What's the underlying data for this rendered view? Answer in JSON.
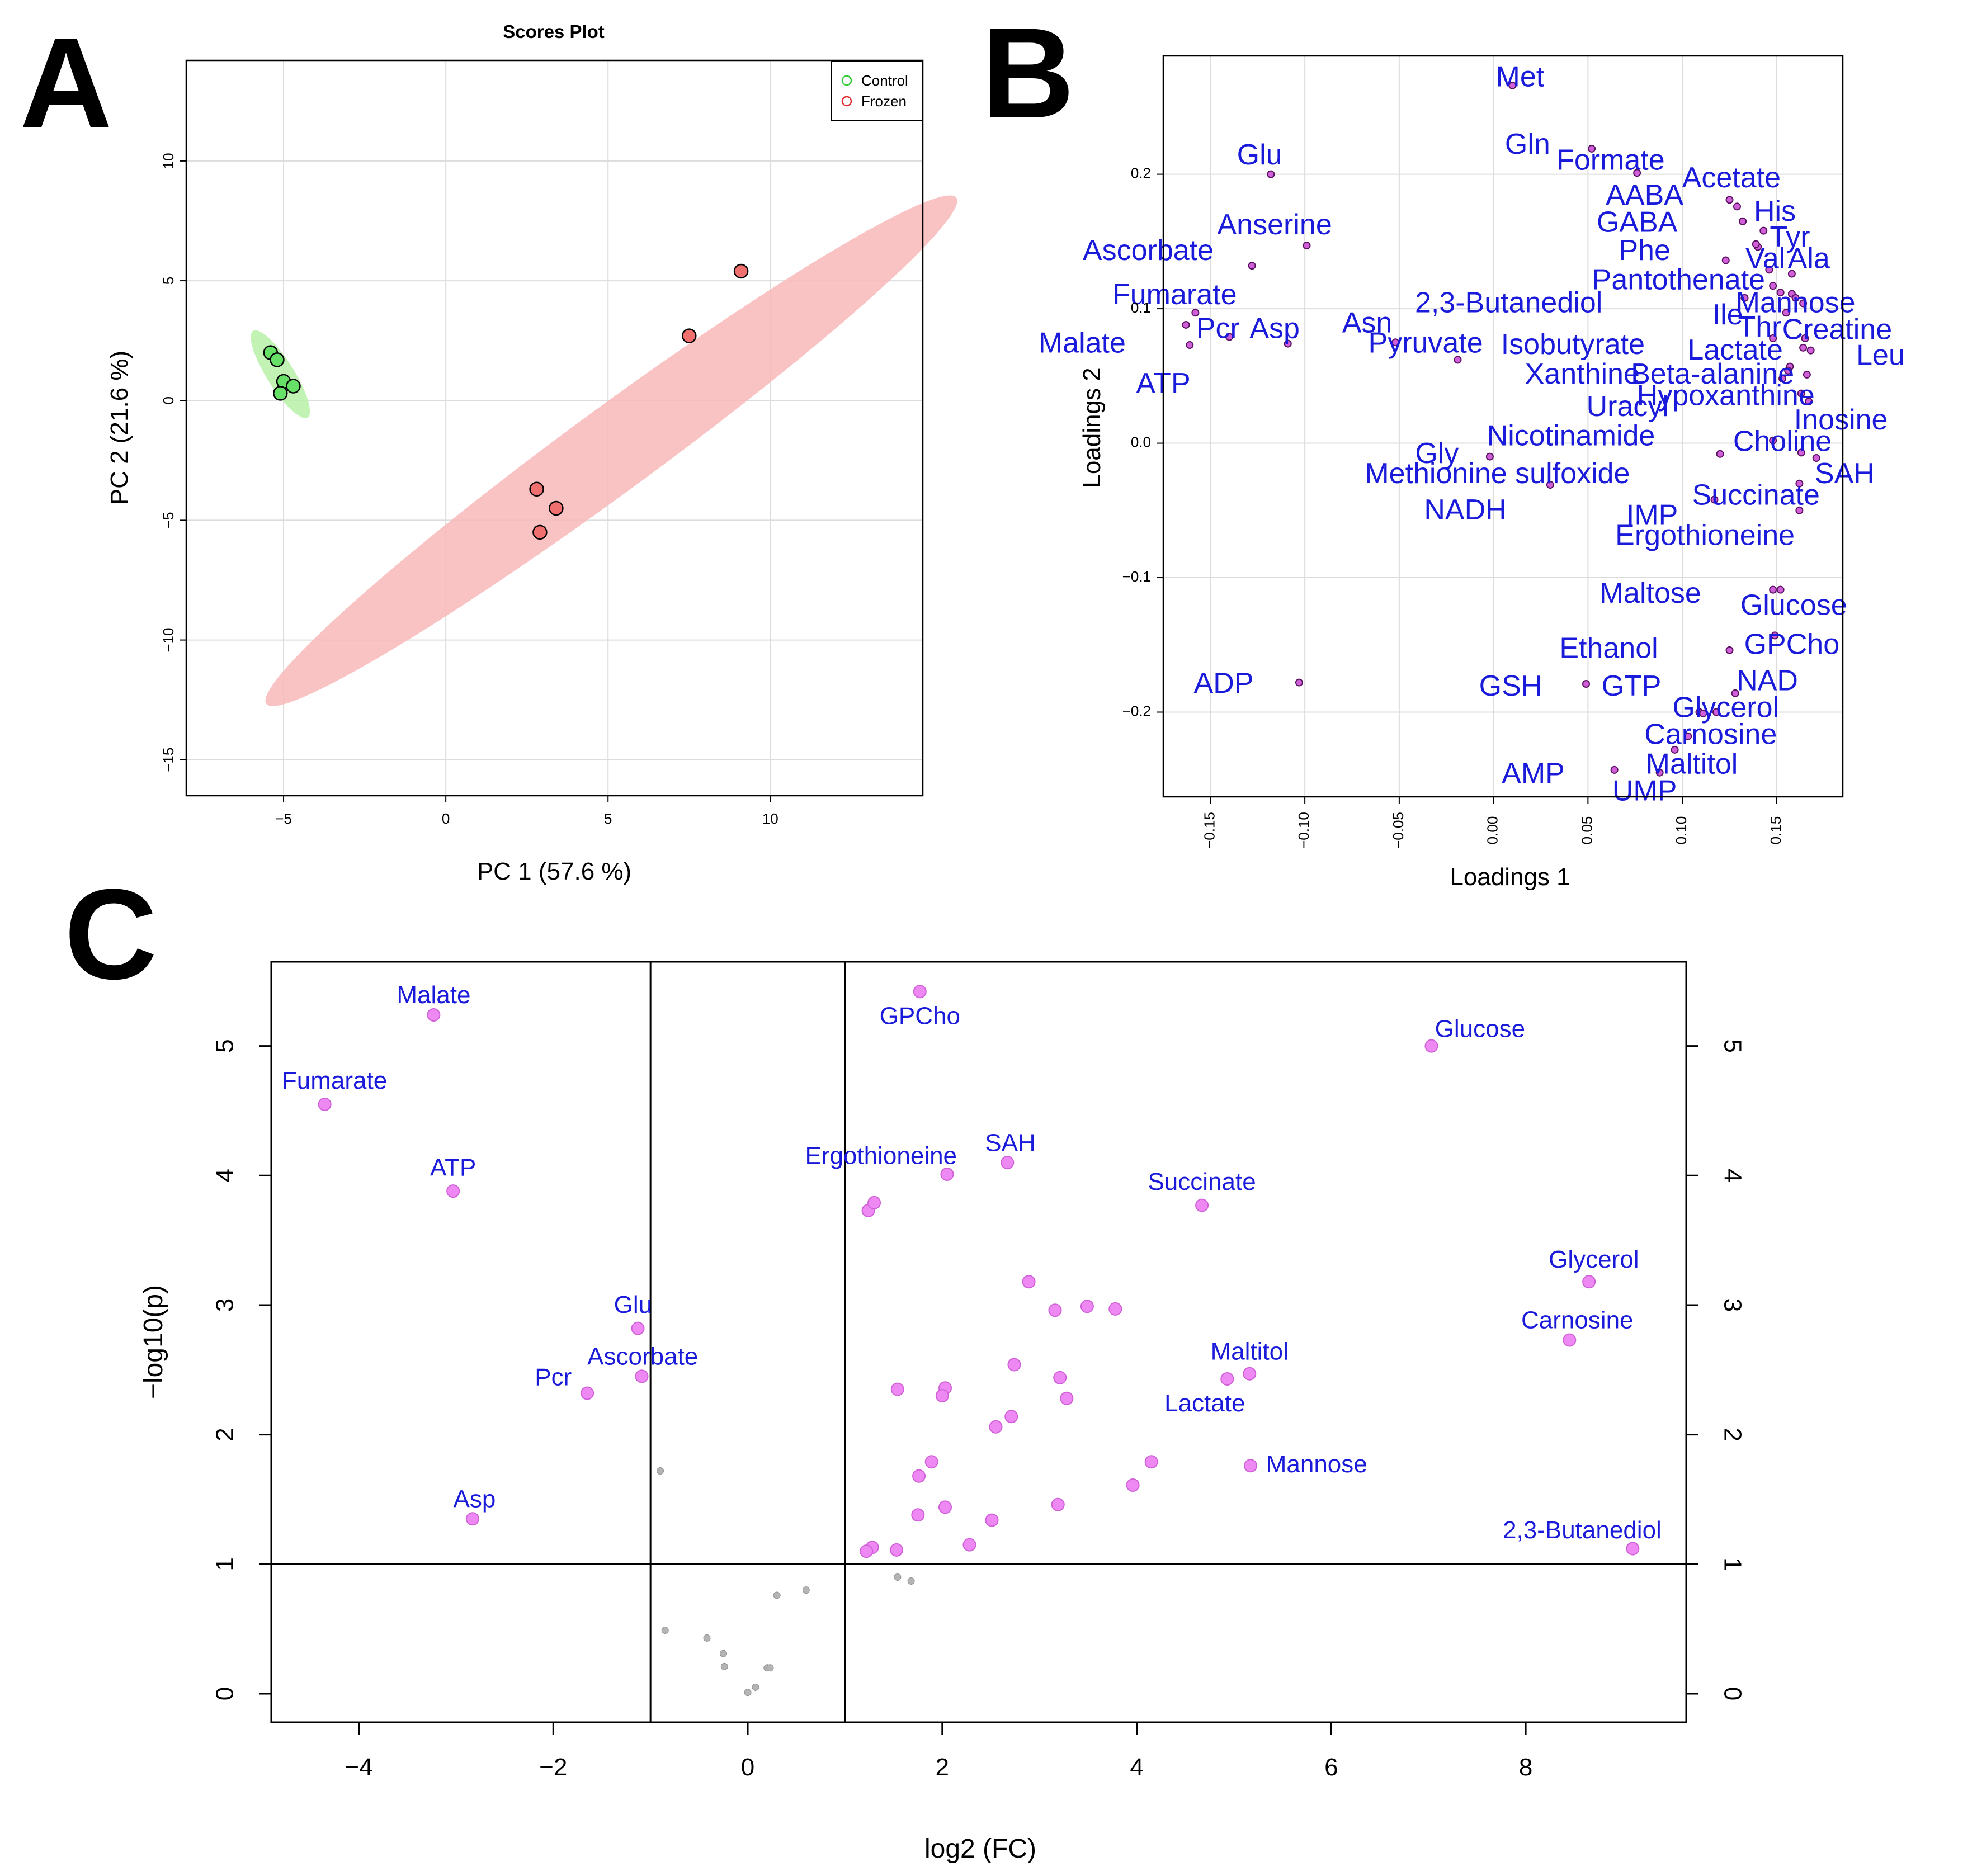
{
  "panels": {
    "a": "A",
    "b": "B",
    "c": "C"
  },
  "colors": {
    "control": "#33cc33",
    "frozen": "#e03030",
    "label": "#1a1adb",
    "magenta": "#e070e8",
    "grey": "#b0b0b0"
  },
  "chart_data": [
    {
      "type": "scatter",
      "title": "Scores Plot",
      "xlabel": "PC 1 (57.6 %)",
      "ylabel": "PC 2 (21.6 %)",
      "xlim": [
        -8,
        14.7
      ],
      "ylim": [
        -16.5,
        14.2
      ],
      "xticks": [
        -5,
        0,
        5,
        10
      ],
      "yticks": [
        -15,
        -10,
        -5,
        0,
        5,
        10
      ],
      "legend": {
        "position": "top-right",
        "entries": [
          "Control",
          "Frozen"
        ]
      },
      "series": [
        {
          "name": "Control",
          "points": [
            [
              -5.4,
              2.0
            ],
            [
              -5.2,
              1.7
            ],
            [
              -5.0,
              0.8
            ],
            [
              -4.7,
              0.6
            ],
            [
              -5.1,
              0.3
            ]
          ]
        },
        {
          "name": "Frozen",
          "points": [
            [
              9.1,
              5.4
            ],
            [
              7.5,
              2.7
            ],
            [
              2.8,
              -3.7
            ],
            [
              3.4,
              -4.5
            ],
            [
              2.9,
              -5.5
            ]
          ]
        }
      ],
      "ellipses": [
        {
          "name": "Control",
          "center": [
            -5.1,
            1.1
          ],
          "semi_major": 2.0,
          "semi_minor": 0.45,
          "angle_deg": -66
        },
        {
          "name": "Frozen",
          "center": [
            5.1,
            -2.1
          ],
          "semi_major": 15.0,
          "semi_minor": 1.55,
          "angle_deg": 45
        }
      ]
    },
    {
      "type": "scatter",
      "xlabel": "Loadings 1",
      "ylabel": "Loadings 2",
      "xlim": [
        -0.175,
        0.185
      ],
      "ylim": [
        -0.263,
        0.288
      ],
      "xticks": [
        -0.15,
        -0.1,
        -0.05,
        0.0,
        0.05,
        0.1,
        0.15
      ],
      "xtick_labels": [
        "-0.15",
        "-0.10",
        "-0.05",
        "0.00",
        "0.05",
        "0.10",
        "0.15"
      ],
      "yticks": [
        -0.2,
        -0.1,
        0.0,
        0.1,
        0.2
      ],
      "ytick_labels": [
        "-0.2",
        "-0.1",
        "0.0",
        "0.1",
        "0.2"
      ],
      "points": [
        {
          "name": "Met",
          "x": 0.01,
          "y": 0.266,
          "lx": 0.014,
          "ly": 0.271
        },
        {
          "name": "Glu",
          "x": -0.118,
          "y": 0.2,
          "lx": -0.124,
          "ly": 0.213
        },
        {
          "name": "Gln",
          "x": 0.052,
          "y": 0.219,
          "lx": 0.018,
          "ly": 0.221
        },
        {
          "name": "Formate",
          "x": 0.076,
          "y": 0.201,
          "lx": 0.062,
          "ly": 0.209
        },
        {
          "name": "Acetate",
          "x": 0.125,
          "y": 0.181,
          "lx": 0.126,
          "ly": 0.196
        },
        {
          "name": "AABA",
          "x": 0.129,
          "y": 0.176,
          "lx": 0.08,
          "ly": 0.183
        },
        {
          "name": "His",
          "x": 0.143,
          "y": 0.158,
          "lx": 0.149,
          "ly": 0.171
        },
        {
          "name": "GABA",
          "x": 0.132,
          "y": 0.165,
          "lx": 0.076,
          "ly": 0.163
        },
        {
          "name": "Tyr",
          "x": 0.14,
          "y": 0.146,
          "lx": 0.157,
          "ly": 0.152
        },
        {
          "name": "Anserine",
          "x": -0.099,
          "y": 0.147,
          "lx": -0.116,
          "ly": 0.161
        },
        {
          "name": "Ascorbate",
          "x": -0.128,
          "y": 0.132,
          "lx": -0.183,
          "ly": 0.142
        },
        {
          "name": "Phe",
          "x": 0.123,
          "y": 0.136,
          "lx": 0.08,
          "ly": 0.142
        },
        {
          "name": "Val",
          "x": 0.146,
          "y": 0.129,
          "lx": 0.144,
          "ly": 0.136
        },
        {
          "name": "Ala",
          "x": 0.158,
          "y": 0.126,
          "lx": 0.167,
          "ly": 0.136
        },
        {
          "name": "Pantothenate",
          "x": 0.148,
          "y": 0.117,
          "lx": 0.098,
          "ly": 0.12
        },
        {
          "name": "Fumarate",
          "x": -0.158,
          "y": 0.097,
          "lx": -0.169,
          "ly": 0.109
        },
        {
          "name": "2,3-Butanediol",
          "x": 0.133,
          "y": 0.108,
          "lx": 0.008,
          "ly": 0.103
        },
        {
          "name": "Mannose",
          "x": 0.158,
          "y": 0.111,
          "lx": 0.16,
          "ly": 0.103
        },
        {
          "name": "Ile",
          "x": 0.152,
          "y": 0.112,
          "lx": 0.124,
          "ly": 0.094
        },
        {
          "name": "Creatine",
          "x": 0.164,
          "y": 0.104,
          "lx": 0.182,
          "ly": 0.083
        },
        {
          "name": "Pcr",
          "x": -0.14,
          "y": 0.079,
          "lx": -0.146,
          "ly": 0.084
        },
        {
          "name": "Asp",
          "x": -0.109,
          "y": 0.074,
          "lx": -0.116,
          "ly": 0.084
        },
        {
          "name": "Asn",
          "x": -0.052,
          "y": 0.075,
          "lx": -0.067,
          "ly": 0.088
        },
        {
          "name": "Malate",
          "x": -0.163,
          "y": 0.088,
          "lx": -0.218,
          "ly": 0.073
        },
        {
          "name": "Thr",
          "x": 0.155,
          "y": 0.097,
          "lx": 0.141,
          "ly": 0.085
        },
        {
          "name": "Pyruvate",
          "x": -0.019,
          "y": 0.062,
          "lx": -0.036,
          "ly": 0.073
        },
        {
          "name": "Isobutyrate",
          "x": 0.148,
          "y": 0.078,
          "lx": 0.042,
          "ly": 0.072
        },
        {
          "name": "Lactate",
          "x": 0.164,
          "y": 0.071,
          "lx": 0.128,
          "ly": 0.068
        },
        {
          "name": "Leu",
          "x": 0.168,
          "y": 0.069,
          "lx": 0.205,
          "ly": 0.064
        },
        {
          "name": "ATP",
          "x": -0.161,
          "y": 0.073,
          "lx": -0.175,
          "ly": 0.043
        },
        {
          "name": "Xanthine",
          "x": 0.157,
          "y": 0.057,
          "lx": 0.047,
          "ly": 0.05
        },
        {
          "name": "Beta-alanine",
          "x": 0.166,
          "y": 0.051,
          "lx": 0.116,
          "ly": 0.05
        },
        {
          "name": "Hypoxanthine",
          "x": 0.163,
          "y": 0.037,
          "lx": 0.123,
          "ly": 0.034
        },
        {
          "name": "Uracyl",
          "x": 0.153,
          "y": 0.048,
          "lx": 0.071,
          "ly": 0.026
        },
        {
          "name": "Inosine",
          "x": 0.167,
          "y": 0.031,
          "lx": 0.184,
          "ly": 0.016
        },
        {
          "name": "Nicotinamide",
          "x": 0.148,
          "y": 0.002,
          "lx": 0.041,
          "ly": 0.004
        },
        {
          "name": "Choline",
          "x": 0.163,
          "y": -0.007,
          "lx": 0.153,
          "ly": 0.0
        },
        {
          "name": "Gly",
          "x": -0.002,
          "y": -0.01,
          "lx": -0.03,
          "ly": -0.009
        },
        {
          "name": "Methionine sulfoxide",
          "x": 0.12,
          "y": -0.008,
          "lx": 0.002,
          "ly": -0.024
        },
        {
          "name": "SAH",
          "x": 0.171,
          "y": -0.011,
          "lx": 0.186,
          "ly": -0.024
        },
        {
          "name": "NADH",
          "x": 0.03,
          "y": -0.031,
          "lx": -0.015,
          "ly": -0.051
        },
        {
          "name": "Succinate",
          "x": 0.162,
          "y": -0.03,
          "lx": 0.139,
          "ly": -0.04
        },
        {
          "name": "IMP",
          "x": 0.117,
          "y": -0.042,
          "lx": 0.084,
          "ly": -0.055
        },
        {
          "name": "Ergothioneine",
          "x": 0.162,
          "y": -0.05,
          "lx": 0.112,
          "ly": -0.07
        },
        {
          "name": "Maltose",
          "x": 0.148,
          "y": -0.109,
          "lx": 0.083,
          "ly": -0.113
        },
        {
          "name": "Glucose",
          "x": 0.152,
          "y": -0.109,
          "lx": 0.159,
          "ly": -0.122
        },
        {
          "name": "GPCho",
          "x": 0.149,
          "y": -0.143,
          "lx": 0.158,
          "ly": -0.151
        },
        {
          "name": "Ethanol",
          "x": 0.125,
          "y": -0.154,
          "lx": 0.061,
          "ly": -0.154
        },
        {
          "name": "ADP",
          "x": -0.103,
          "y": -0.178,
          "lx": -0.143,
          "ly": -0.18
        },
        {
          "name": "GSH",
          "x": 0.049,
          "y": -0.179,
          "lx": 0.009,
          "ly": -0.182
        },
        {
          "name": "GTP",
          "x": 0.109,
          "y": -0.2,
          "lx": 0.073,
          "ly": -0.182
        },
        {
          "name": "NAD",
          "x": 0.128,
          "y": -0.186,
          "lx": 0.145,
          "ly": -0.178
        },
        {
          "name": "Glycerol",
          "x": 0.118,
          "y": -0.2,
          "lx": 0.123,
          "ly": -0.198
        },
        {
          "name": "Carnosine",
          "x": 0.103,
          "y": -0.218,
          "lx": 0.115,
          "ly": -0.218
        },
        {
          "name": "Maltitol",
          "x": 0.096,
          "y": -0.228,
          "lx": 0.105,
          "ly": -0.24
        },
        {
          "name": "AMP",
          "x": 0.064,
          "y": -0.243,
          "lx": 0.021,
          "ly": -0.247
        },
        {
          "name": "UMP",
          "x": 0.088,
          "y": -0.245,
          "lx": 0.08,
          "ly": -0.26
        },
        {
          "name": "",
          "x": 0.111,
          "y": -0.201,
          "lx": 0,
          "ly": 0
        },
        {
          "name": "",
          "x": 0.139,
          "y": 0.148,
          "lx": 0,
          "ly": 0
        },
        {
          "name": "",
          "x": 0.165,
          "y": 0.078,
          "lx": 0,
          "ly": 0
        },
        {
          "name": "",
          "x": 0.16,
          "y": 0.108,
          "lx": 0,
          "ly": 0
        },
        {
          "name": "",
          "x": 0.156,
          "y": 0.054,
          "lx": 0,
          "ly": 0
        }
      ]
    },
    {
      "type": "scatter",
      "subtype": "volcano",
      "xlabel": "log2 (FC)",
      "ylabel": "−log10(p)",
      "xlim": [
        -4.9,
        9.65
      ],
      "ylim": [
        -0.22,
        5.65
      ],
      "xticks": [
        -4,
        -2,
        0,
        2,
        4,
        6,
        8
      ],
      "xtick_labels": [
        "−4",
        "−2",
        "0",
        "2",
        "4",
        "6",
        "8"
      ],
      "yticks": [
        0,
        1,
        2,
        3,
        4,
        5
      ],
      "thresholds": {
        "fc_low": -1,
        "fc_high": 1,
        "p": 1
      },
      "significant": [
        {
          "name": "Malate",
          "x": -3.23,
          "y": 5.24,
          "lx": -3.23,
          "ly": 5.38
        },
        {
          "name": "Fumarate",
          "x": -4.35,
          "y": 4.55,
          "lx": -4.25,
          "ly": 4.72
        },
        {
          "name": "ATP",
          "x": -3.03,
          "y": 3.88,
          "lx": -3.03,
          "ly": 4.05
        },
        {
          "name": "Glu",
          "x": -1.13,
          "y": 2.82,
          "lx": -1.18,
          "ly": 2.99
        },
        {
          "name": "Ascorbate",
          "x": -1.09,
          "y": 2.45,
          "lx": -1.08,
          "ly": 2.59
        },
        {
          "name": "Pcr",
          "x": -1.65,
          "y": 2.32,
          "lx": -2.0,
          "ly": 2.43
        },
        {
          "name": "Asp",
          "x": -2.83,
          "y": 1.35,
          "lx": -2.81,
          "ly": 1.49
        },
        {
          "name": "GPCho",
          "x": 1.77,
          "y": 5.42,
          "lx": 1.77,
          "ly": 5.22
        },
        {
          "name": "Glucose",
          "x": 7.03,
          "y": 5.0,
          "lx": 7.53,
          "ly": 5.12
        },
        {
          "name": "Ergothioneine",
          "x": 2.05,
          "y": 4.01,
          "lx": 1.37,
          "ly": 4.14
        },
        {
          "name": "SAH",
          "x": 2.67,
          "y": 4.1,
          "lx": 2.7,
          "ly": 4.24
        },
        {
          "name": "Succinate",
          "x": 4.67,
          "y": 3.77,
          "lx": 4.67,
          "ly": 3.94
        },
        {
          "name": "Glycerol",
          "x": 8.65,
          "y": 3.18,
          "lx": 8.7,
          "ly": 3.34
        },
        {
          "name": "Carnosine",
          "x": 8.45,
          "y": 2.73,
          "lx": 8.53,
          "ly": 2.87
        },
        {
          "name": "Maltitol",
          "x": 5.16,
          "y": 2.47,
          "lx": 5.16,
          "ly": 2.63
        },
        {
          "name": "Lactate",
          "x": 4.93,
          "y": 2.43,
          "lx": 4.7,
          "ly": 2.23
        },
        {
          "name": "Mannose",
          "x": 5.17,
          "y": 1.76,
          "lx": 5.85,
          "ly": 1.76
        },
        {
          "name": "2,3-Butanediol",
          "x": 9.1,
          "y": 1.12,
          "lx": 8.58,
          "ly": 1.25
        },
        {
          "name": "",
          "x": 1.24,
          "y": 3.73
        },
        {
          "name": "",
          "x": 1.3,
          "y": 3.79
        },
        {
          "name": "",
          "x": 2.89,
          "y": 3.18
        },
        {
          "name": "",
          "x": 3.16,
          "y": 2.96
        },
        {
          "name": "",
          "x": 3.49,
          "y": 2.99
        },
        {
          "name": "",
          "x": 3.78,
          "y": 2.97
        },
        {
          "name": "",
          "x": 2.74,
          "y": 2.54
        },
        {
          "name": "",
          "x": 3.21,
          "y": 2.44
        },
        {
          "name": "",
          "x": 3.28,
          "y": 2.28
        },
        {
          "name": "",
          "x": 2.71,
          "y": 2.14
        },
        {
          "name": "",
          "x": 2.55,
          "y": 2.06
        },
        {
          "name": "",
          "x": 1.54,
          "y": 2.35
        },
        {
          "name": "",
          "x": 2.03,
          "y": 2.36
        },
        {
          "name": "",
          "x": 2.0,
          "y": 2.3
        },
        {
          "name": "",
          "x": 1.89,
          "y": 1.79
        },
        {
          "name": "",
          "x": 1.76,
          "y": 1.68
        },
        {
          "name": "",
          "x": 4.15,
          "y": 1.79
        },
        {
          "name": "",
          "x": 3.96,
          "y": 1.61
        },
        {
          "name": "",
          "x": 3.19,
          "y": 1.46
        },
        {
          "name": "",
          "x": 2.03,
          "y": 1.44
        },
        {
          "name": "",
          "x": 1.75,
          "y": 1.38
        },
        {
          "name": "",
          "x": 2.51,
          "y": 1.34
        },
        {
          "name": "",
          "x": 2.28,
          "y": 1.15
        },
        {
          "name": "",
          "x": 1.53,
          "y": 1.11
        },
        {
          "name": "",
          "x": 1.28,
          "y": 1.13
        },
        {
          "name": "",
          "x": 1.22,
          "y": 1.1
        }
      ],
      "nonsignificant": [
        {
          "x": -0.9,
          "y": 1.72
        },
        {
          "x": -0.85,
          "y": 0.49
        },
        {
          "x": -0.42,
          "y": 0.43
        },
        {
          "x": -0.25,
          "y": 0.31
        },
        {
          "x": -0.24,
          "y": 0.21
        },
        {
          "x": 0.2,
          "y": 0.2
        },
        {
          "x": 0.23,
          "y": 0.2
        },
        {
          "x": 0.3,
          "y": 0.76
        },
        {
          "x": 0.6,
          "y": 0.8
        },
        {
          "x": 0.08,
          "y": 0.05
        },
        {
          "x": 0.0,
          "y": 0.01
        },
        {
          "x": 1.54,
          "y": 0.9
        },
        {
          "x": 1.68,
          "y": 0.87
        }
      ]
    }
  ]
}
